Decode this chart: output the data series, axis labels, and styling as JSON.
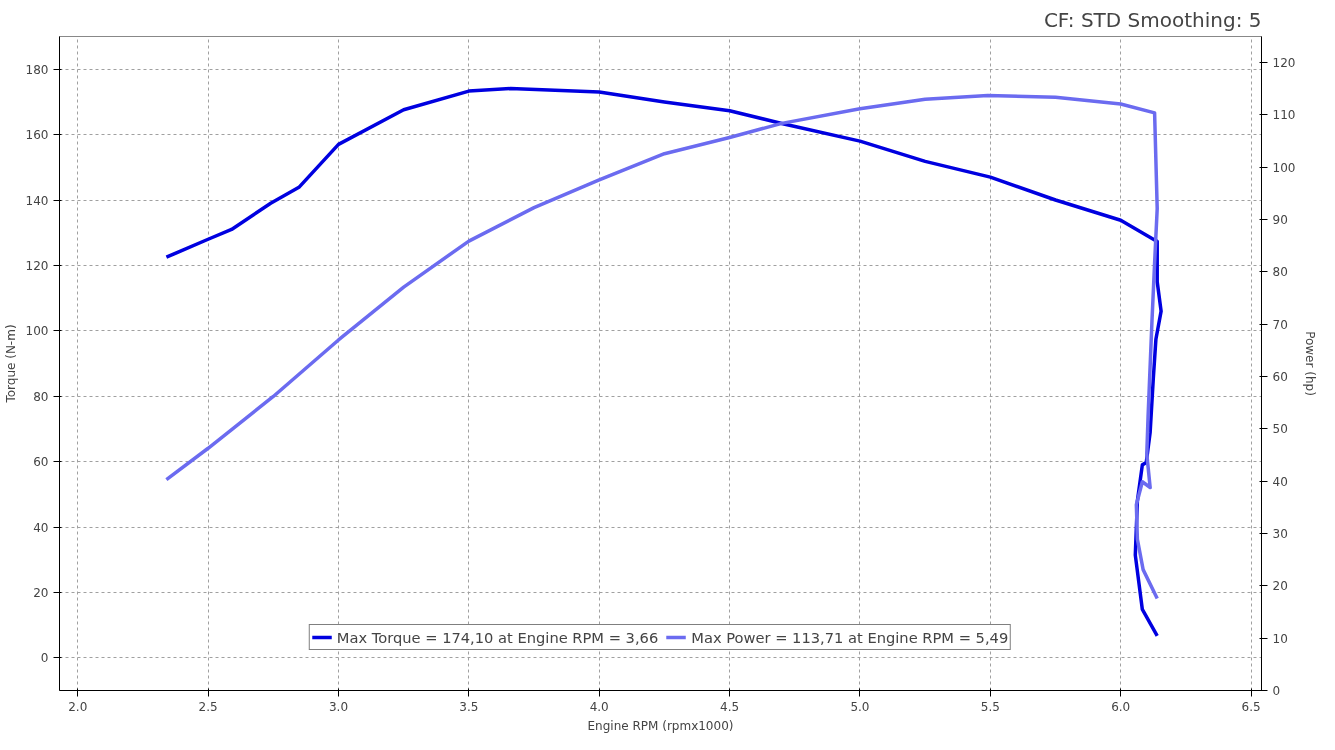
{
  "chart_data": {
    "type": "line",
    "annotations": [
      "CF: STD Smoothing: 5"
    ],
    "xlabel": "Engine RPM (rpmx1000)",
    "ylabel": "Torque (N-m)",
    "y2label": "Power (hp)",
    "xlim": [
      1.93,
      6.54
    ],
    "xticks": [
      {
        "value": 2,
        "label": "2.0"
      },
      2.5,
      {
        "value": 3,
        "label": "3.0"
      },
      3.5,
      {
        "value": 4,
        "label": "4.0"
      },
      4.5,
      {
        "value": 5,
        "label": "5.0"
      },
      5.5,
      {
        "value": 6,
        "label": "6.0"
      },
      6.5
    ],
    "ylim": [
      -10,
      190
    ],
    "yticks": [
      0,
      20,
      40,
      60,
      80,
      100,
      120,
      140,
      160,
      180
    ],
    "y2lim": [
      0,
      125
    ],
    "y2ticks": [
      0,
      10,
      20,
      30,
      40,
      50,
      60,
      70,
      80,
      90,
      100,
      110,
      120
    ],
    "grid": true,
    "legend": "bottom",
    "line_style": "solid",
    "marker": "none",
    "series": [
      {
        "name": "Max Torque = 174,10 at Engine RPM = 3,66",
        "color": "#0000e0",
        "x": [
          2.34,
          2.5,
          2.59,
          2.74,
          2.85,
          3.0,
          3.25,
          3.5,
          3.66,
          4.0,
          4.25,
          4.5,
          4.7,
          5.0,
          5.25,
          5.5,
          5.75,
          6.0,
          6.13,
          6.14,
          6.14,
          6.155,
          6.135,
          6.125,
          6.113,
          6.098,
          6.083,
          6.064,
          6.056,
          6.083,
          6.14
        ],
        "values": [
          122.5,
          128,
          131,
          139,
          144,
          157,
          167.6,
          173.3,
          174.1,
          173,
          170,
          167.3,
          163.4,
          158,
          151.8,
          147,
          140,
          133.8,
          127.8,
          127.4,
          115,
          106,
          97.4,
          85.4,
          69,
          59.7,
          59,
          48,
          31.4,
          14.8,
          6.7
        ]
      },
      {
        "name": "Max Power = 113,71 at Engine RPM = 5,49",
        "color": "#6b6bf0",
        "axis": "y2",
        "x": [
          2.34,
          2.5,
          2.75,
          3.0,
          3.25,
          3.5,
          3.75,
          4.0,
          4.25,
          4.5,
          4.7,
          5.0,
          5.25,
          5.49,
          5.75,
          6.0,
          6.13,
          6.14,
          6.13,
          6.12,
          6.105,
          6.1,
          6.113,
          6.083,
          6.06,
          6.064,
          6.086,
          6.14
        ],
        "values": [
          40.3,
          46.3,
          56.2,
          67,
          77.1,
          85.9,
          92.3,
          97.6,
          102.6,
          105.7,
          108.4,
          111.2,
          113,
          113.7,
          113.4,
          112.1,
          110.4,
          92.1,
          81.7,
          70.7,
          52.4,
          45.2,
          38.8,
          39.9,
          35.5,
          28.9,
          23.1,
          17.6
        ]
      }
    ]
  }
}
